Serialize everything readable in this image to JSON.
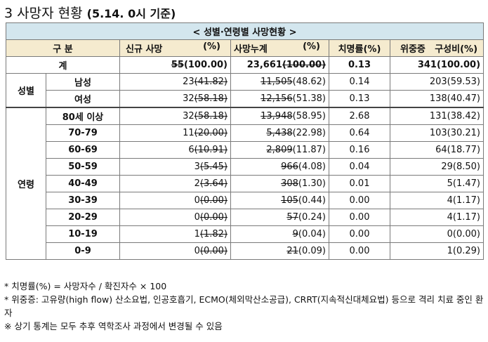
{
  "title": {
    "number": "3",
    "main": "사망자 현황",
    "date": "(5.14. 0시 기준)"
  },
  "table_title": "< 성별·연령별 사망현황 >",
  "headers": {
    "category": "구 분",
    "new_label": "신규 사망",
    "new_unit": "(%)",
    "cum_label": "사망누계",
    "cum_unit": "(%)",
    "fatality": "치명률(%)",
    "severe_label": "위중증",
    "severe_comp": "구성비(%)"
  },
  "total": {
    "label": "계",
    "new_old": "55",
    "new_rest": "(100.00)",
    "cum_main": "23,661",
    "cum_old": "(100.00)",
    "fatality": "0.13",
    "severe": "341(100.00)"
  },
  "groups": {
    "sex": "성별",
    "age": "연령"
  },
  "sex_rows": [
    {
      "label": "남성",
      "new_val": "23",
      "new_old": "(41.82)",
      "cum_old": "11,505",
      "cum_new": "(48.62)",
      "fatality": "0.14",
      "severe": "203(59.53)"
    },
    {
      "label": "여성",
      "new_val": "32",
      "new_old": "(58.18)",
      "cum_old": "12,156",
      "cum_new": "(51.38)",
      "fatality": "0.13",
      "severe": "138(40.47)"
    }
  ],
  "age_rows": [
    {
      "label": "80세 이상",
      "new_val": "32",
      "new_old": "(58.18)",
      "cum_old": "13,948",
      "cum_new": "(58.95)",
      "fatality": "2.68",
      "severe": "131(38.42)"
    },
    {
      "label": "70-79",
      "new_val": "11",
      "new_old": "(20.00)",
      "cum_old": "5,438",
      "cum_new": "(22.98)",
      "fatality": "0.64",
      "severe": "103(30.21)"
    },
    {
      "label": "60-69",
      "new_val": "6",
      "new_old": "(10.91)",
      "cum_old": "2,809",
      "cum_new": "(11.87)",
      "fatality": "0.16",
      "severe": "64(18.77)"
    },
    {
      "label": "50-59",
      "new_val": "3",
      "new_old": "(5.45)",
      "cum_old": "966",
      "cum_new": "(4.08)",
      "fatality": "0.04",
      "severe": "29(8.50)"
    },
    {
      "label": "40-49",
      "new_val": "2",
      "new_old": "(3.64)",
      "cum_old": "308",
      "cum_new": "(1.30)",
      "fatality": "0.01",
      "severe": "5(1.47)"
    },
    {
      "label": "30-39",
      "new_val": "0",
      "new_old": "(0.00)",
      "cum_old": "105",
      "cum_new": "(0.44)",
      "fatality": "0.00",
      "severe": "4(1.17)"
    },
    {
      "label": "20-29",
      "new_val": "0",
      "new_old": "(0.00)",
      "cum_old": "57",
      "cum_new": "(0.24)",
      "fatality": "0.00",
      "severe": "4(1.17)"
    },
    {
      "label": "10-19",
      "new_val": "1",
      "new_old": "(1.82)",
      "cum_old": "9",
      "cum_new": "(0.04)",
      "fatality": "0.00",
      "severe": "0(0.00)"
    },
    {
      "label": "0-9",
      "new_val": "0",
      "new_old": "(0.00)",
      "cum_old": "21",
      "cum_new": "(0.09)",
      "fatality": "0.00",
      "severe": "1(0.29)"
    }
  ],
  "notes": [
    "* 치명률(%) = 사망자수 / 확진자수 × 100",
    "* 위중증: 고유량(high flow) 산소요법, 인공호흡기, ECMO(체외막산소공급), CRRT(지속적신대체요법) 등으로 격리 치료 중인 환자",
    "※ 상기 통계는 모두 추후 역학조사 과정에서 변경될 수 있음"
  ]
}
